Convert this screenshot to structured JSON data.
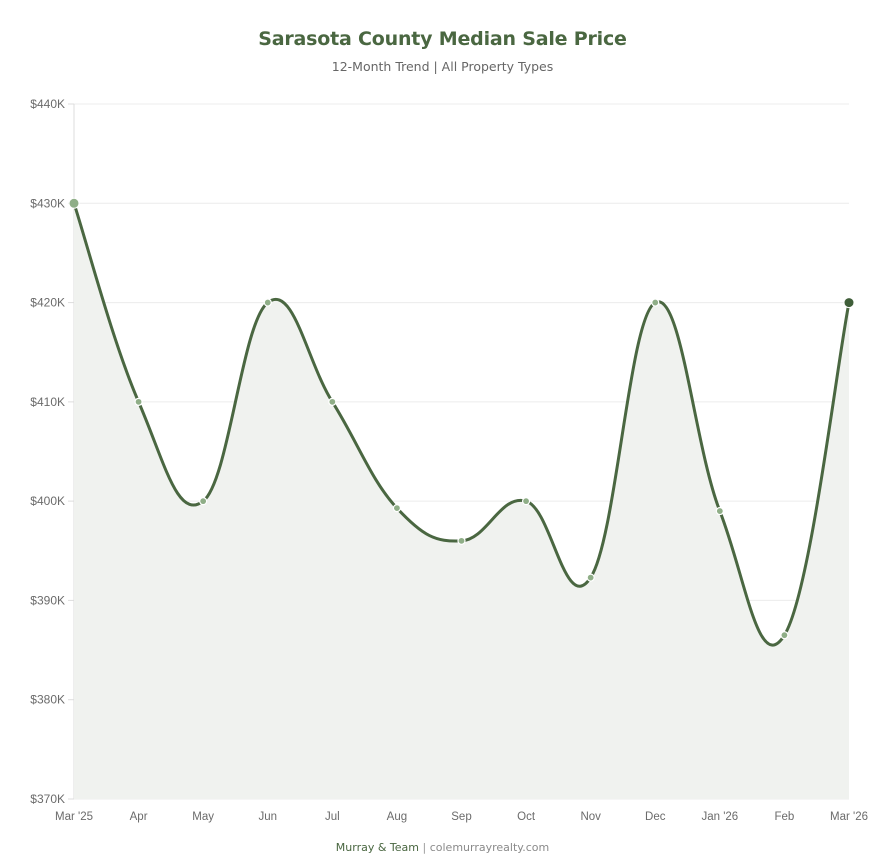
{
  "header": {
    "title": "Sarasota County Median Sale Price",
    "subtitle": "12-Month Trend | All Property Types"
  },
  "footer": {
    "brand": "Murray & Team",
    "separator": "|",
    "website": "colemurrayrealty.com"
  },
  "colors": {
    "line": "#4a6741",
    "fill": "#f0f2ef",
    "point": "#8fae87",
    "point_last": "#3f5e39",
    "grid": "#ececec",
    "title": "#4a6741"
  },
  "chart_data": {
    "type": "line",
    "title": "Sarasota County Median Sale Price",
    "subtitle": "12-Month Trend | All Property Types",
    "xlabel": "",
    "ylabel": "",
    "categories": [
      "Mar '25",
      "Apr",
      "May",
      "Jun",
      "Jul",
      "Aug",
      "Sep",
      "Oct",
      "Nov",
      "Dec",
      "Jan '26",
      "Feb",
      "Mar '26"
    ],
    "series": [
      {
        "name": "Median Sale Price",
        "values": [
          430000,
          410000,
          400000,
          420000,
          410000,
          399300,
          396000,
          400000,
          392300,
          420000,
          399000,
          386500,
          420000
        ]
      }
    ],
    "ylim": [
      370000,
      440000
    ],
    "yticks": [
      370000,
      380000,
      390000,
      400000,
      410000,
      420000,
      430000,
      440000
    ],
    "ytick_labels": [
      "$370K",
      "$380K",
      "$390K",
      "$400K",
      "$410K",
      "$420K",
      "$430K",
      "$440K"
    ],
    "grid": true,
    "smooth": true,
    "area_fill": true,
    "legend": null
  }
}
